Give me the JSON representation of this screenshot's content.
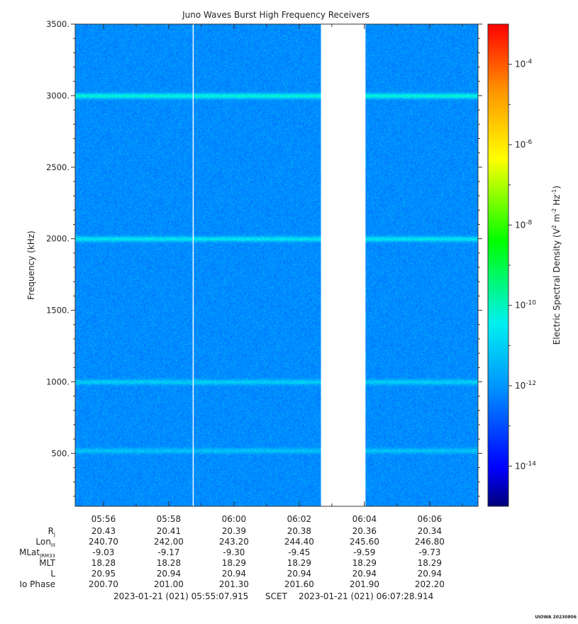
{
  "chart_data": {
    "type": "heatmap",
    "title": "Juno Waves Burst High Frequency Receivers",
    "ylabel": "Frequency (kHz)",
    "ylim": [
      130,
      3500
    ],
    "y_ticks": [
      "500.",
      "1000.",
      "1500.",
      "2000.",
      "2500.",
      "3000.",
      "3500."
    ],
    "y_tick_values": [
      500,
      1000,
      1500,
      2000,
      2500,
      3000,
      3500
    ],
    "x_time_range": [
      "05:55:07.915",
      "06:07:28.914"
    ],
    "x_ticks": [
      "05:56",
      "05:58",
      "06:00",
      "06:02",
      "06:04",
      "06:06"
    ],
    "data_gap": {
      "start": "06:02:40",
      "end": "06:04:02"
    },
    "narrow_gap_at": "05:58:45",
    "bands_khz": [
      {
        "center": 3000,
        "level_exp": -10.2
      },
      {
        "center": 2000,
        "level_exp": -10.6
      },
      {
        "center": 1000,
        "level_exp": -11.0
      },
      {
        "center": 520,
        "level_exp": -11.2
      }
    ],
    "background_level_exp": -12.1,
    "colorbar": {
      "label_main": "Electric Spectral Density (V",
      "label_sup1": "2",
      "label_mid": " m",
      "label_sup2": "-2",
      "label_hz": " Hz",
      "label_sup3": "-1",
      "label_end": ")",
      "log_range": [
        -15,
        -3
      ],
      "ticks": [
        {
          "base": "10",
          "exp": "-4",
          "value": -4
        },
        {
          "base": "10",
          "exp": "-6",
          "value": -6
        },
        {
          "base": "10",
          "exp": "-8",
          "value": -8
        },
        {
          "base": "10",
          "exp": "-10",
          "value": -10
        },
        {
          "base": "10",
          "exp": "-12",
          "value": -12
        },
        {
          "base": "10",
          "exp": "-14",
          "value": -14
        }
      ]
    },
    "ephemeris": {
      "rows": [
        {
          "label": "R",
          "sub": "J",
          "values": [
            "20.43",
            "20.41",
            "20.39",
            "20.38",
            "20.36",
            "20.34"
          ]
        },
        {
          "label": "Lon",
          "sub": "III",
          "values": [
            "240.70",
            "242.00",
            "243.20",
            "244.40",
            "245.60",
            "246.80"
          ]
        },
        {
          "label": "MLat",
          "sub": "JRM33",
          "values": [
            "-9.03",
            "-9.17",
            "-9.30",
            "-9.45",
            "-9.59",
            "-9.73"
          ]
        },
        {
          "label": "MLT",
          "sub": "",
          "values": [
            "18.28",
            "18.28",
            "18.29",
            "18.29",
            "18.29",
            "18.29"
          ]
        },
        {
          "label": "L",
          "sub": "",
          "values": [
            "20.95",
            "20.94",
            "20.94",
            "20.94",
            "20.94",
            "20.94"
          ]
        },
        {
          "label": "Io Phase",
          "sub": "",
          "values": [
            "200.70",
            "201.00",
            "201.30",
            "201.60",
            "201.90",
            "202.20"
          ]
        }
      ]
    },
    "time_range_text": {
      "start": "2023-01-21 (021) 05:55:07.915",
      "scet": "SCET",
      "end": "2023-01-21 (021) 06:07:28.914"
    },
    "footer_tag": "UIOWA 20230806"
  }
}
